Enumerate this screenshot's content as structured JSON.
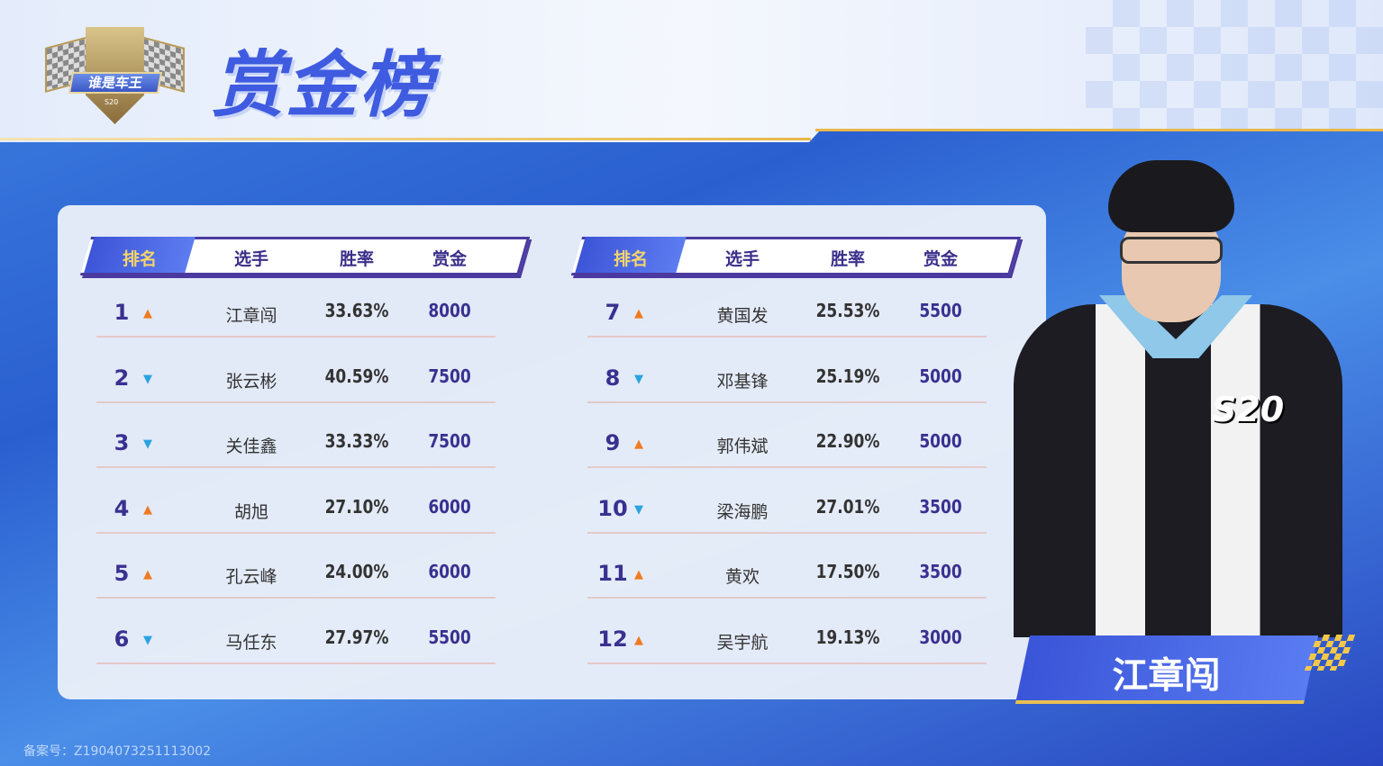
{
  "header": {
    "title": "赏金榜",
    "logo_text": "谁是车王",
    "logo_sub": "S20"
  },
  "columns": {
    "rank": "排名",
    "player": "选手",
    "winrate": "胜率",
    "bounty": "赏金"
  },
  "left_rows": [
    {
      "rank": "1",
      "trend": "up",
      "arrow": "▲",
      "name": "江章闯",
      "winrate": "33.63%",
      "bounty": "8000"
    },
    {
      "rank": "2",
      "trend": "down",
      "arrow": "▼",
      "name": "张云彬",
      "winrate": "40.59%",
      "bounty": "7500"
    },
    {
      "rank": "3",
      "trend": "down",
      "arrow": "▼",
      "name": "关佳鑫",
      "winrate": "33.33%",
      "bounty": "7500"
    },
    {
      "rank": "4",
      "trend": "up",
      "arrow": "▲",
      "name": "胡旭",
      "winrate": "27.10%",
      "bounty": "6000"
    },
    {
      "rank": "5",
      "trend": "up",
      "arrow": "▲",
      "name": "孔云峰",
      "winrate": "24.00%",
      "bounty": "6000"
    },
    {
      "rank": "6",
      "trend": "down",
      "arrow": "▼",
      "name": "马任东",
      "winrate": "27.97%",
      "bounty": "5500"
    }
  ],
  "right_rows": [
    {
      "rank": "7",
      "trend": "up",
      "arrow": "▲",
      "name": "黄国发",
      "winrate": "25.53%",
      "bounty": "5500"
    },
    {
      "rank": "8",
      "trend": "down",
      "arrow": "▼",
      "name": "邓基锋",
      "winrate": "25.19%",
      "bounty": "5000"
    },
    {
      "rank": "9",
      "trend": "up",
      "arrow": "▲",
      "name": "郭伟斌",
      "winrate": "22.90%",
      "bounty": "5000"
    },
    {
      "rank": "10",
      "trend": "down",
      "arrow": "▼",
      "name": "梁海鹏",
      "winrate": "27.01%",
      "bounty": "3500"
    },
    {
      "rank": "11",
      "trend": "up",
      "arrow": "▲",
      "name": "黄欢",
      "winrate": "17.50%",
      "bounty": "3500"
    },
    {
      "rank": "12",
      "trend": "up",
      "arrow": "▲",
      "name": "吴宇航",
      "winrate": "19.13%",
      "bounty": "3000"
    }
  ],
  "featured": {
    "name": "江章闯",
    "jersey_logo": "S20"
  },
  "footer": {
    "icp": "备案号：Z1904073251113002"
  },
  "colors": {
    "up": "#f07a20",
    "down": "#2aa3e0",
    "accent": "#3f5be0",
    "gold": "#e8b84a"
  }
}
